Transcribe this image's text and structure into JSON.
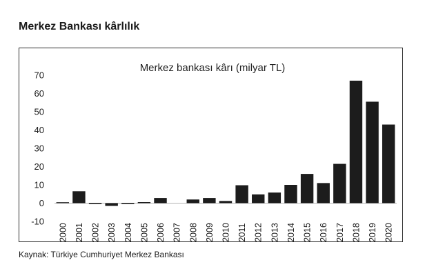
{
  "header": {
    "title": "Merkez Bankası kârlılık"
  },
  "footer": {
    "source": "Kaynak: Türkiye Cumhuriyet Merkez Bankası"
  },
  "colors": {
    "bar": "#1c1c1c",
    "frame": "#2b2b2b",
    "text": "#1a1a1a"
  },
  "chart_data": {
    "type": "bar",
    "title": "Merkez bankası kârı (milyar TL)",
    "categories": [
      "2000",
      "2001",
      "2002",
      "2003",
      "2004",
      "2005",
      "2006",
      "2007",
      "2008",
      "2009",
      "2010",
      "2011",
      "2012",
      "2013",
      "2014",
      "2015",
      "2016",
      "2017",
      "2018",
      "2019",
      "2020"
    ],
    "values": [
      0.5,
      6.5,
      -0.2,
      -1.5,
      -0.3,
      0.2,
      2.8,
      0,
      2,
      2.8,
      1.2,
      9.8,
      4.8,
      5.8,
      10,
      16,
      11,
      21.5,
      67,
      55.5,
      43
    ],
    "yticks": [
      -10,
      0,
      10,
      20,
      30,
      40,
      50,
      60,
      70
    ],
    "ylim": [
      -10,
      70
    ],
    "grid": false,
    "legend": "none"
  }
}
